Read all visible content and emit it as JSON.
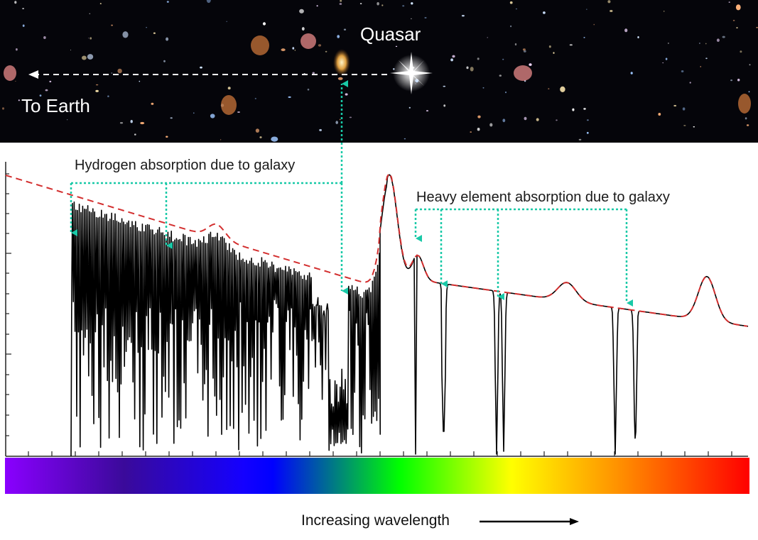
{
  "sky": {
    "quasar_label": "Quasar",
    "earth_label": "To Earth"
  },
  "annotations": {
    "hydrogen": "Hydrogen absorption due to galaxy",
    "heavy": "Heavy element absorption due to galaxy"
  },
  "spectrum_bar": {
    "colors": [
      "#8a00ff",
      "#1400ff",
      "#0000ff",
      "#00ff00",
      "#ffff00",
      "#ff8c00",
      "#ff0000"
    ]
  },
  "axis": {
    "xlabel": "Increasing wavelength"
  },
  "colors": {
    "sky_bg": "#05050a",
    "annotation_arrow": "#19c9a7",
    "continuum": "#d32f2f",
    "spectrum_line": "#000000"
  }
}
